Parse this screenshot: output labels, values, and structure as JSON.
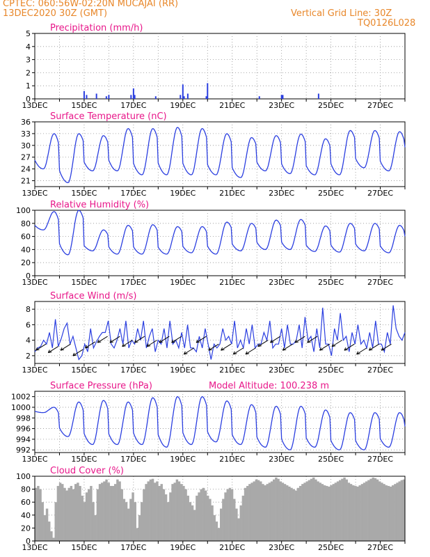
{
  "header": {
    "line1_left": "CPTEC:   060:56W-02:20N   MUCAJAI (RR)",
    "line2_left": "13DEC2020 30Z (GMT)",
    "line1_right": "Vertical Grid Line: 30Z",
    "line2_right": "TQ0126L028"
  },
  "colors": {
    "header": "#e8872a",
    "panel_title": "#e8178a",
    "series": "#2a3ee0",
    "cloud": "#a9a9a9",
    "grid": "#909090"
  },
  "chart_data": [
    {
      "type": "bar",
      "title": "Precipitation (mm/h)",
      "ylim": [
        0,
        5
      ],
      "yticks": [
        "0",
        "1",
        "2",
        "3",
        "4",
        "5"
      ],
      "x_range_days": [
        13,
        28
      ],
      "xtick_labels": [
        "13DEC",
        "15DEC",
        "17DEC",
        "19DEC",
        "21DEC",
        "23DEC",
        "25DEC",
        "27DEC"
      ],
      "grid": "dotted",
      "bars": [
        [
          15.0,
          0.6
        ],
        [
          15.1,
          0.3
        ],
        [
          15.5,
          0.4
        ],
        [
          15.9,
          0.2
        ],
        [
          16.0,
          0.3
        ],
        [
          16.9,
          0.3
        ],
        [
          17.0,
          0.8
        ],
        [
          17.05,
          0.3
        ],
        [
          17.9,
          0.2
        ],
        [
          18.9,
          0.3
        ],
        [
          19.0,
          1.1
        ],
        [
          19.05,
          0.2
        ],
        [
          19.2,
          0.4
        ],
        [
          19.95,
          0.2
        ],
        [
          20.0,
          1.2
        ],
        [
          22.1,
          0.2
        ],
        [
          23.0,
          0.3
        ],
        [
          23.05,
          0.3
        ],
        [
          24.5,
          0.4
        ]
      ]
    },
    {
      "type": "line",
      "title": "Surface Temperature (nC)",
      "ylim": [
        19.5,
        36
      ],
      "yticks": [
        "21",
        "24",
        "27",
        "30",
        "33",
        "36"
      ],
      "xtick_labels": [
        "13DEC",
        "15DEC",
        "17DEC",
        "19DEC",
        "21DEC",
        "23DEC",
        "25DEC",
        "27DEC"
      ],
      "grid": "dotted",
      "peaks": [
        33.0,
        33.0,
        32.5,
        34.3,
        34.3,
        34.6,
        34.3,
        33.0,
        32.0,
        32.5,
        32.9,
        31.7,
        33.8,
        33.8,
        33.5
      ],
      "troughs": [
        24.0,
        20.5,
        23.5,
        23.5,
        22.5,
        22.5,
        22.5,
        22.5,
        21.8,
        23.5,
        22.8,
        22.5,
        22.5,
        24.3,
        23.5
      ]
    },
    {
      "type": "line",
      "title": "Relative Humidity (%)",
      "ylim": [
        0,
        100
      ],
      "yticks": [
        "0",
        "20",
        "40",
        "60",
        "80",
        "100"
      ],
      "xtick_labels": [
        "13DEC",
        "15DEC",
        "17DEC",
        "19DEC",
        "21DEC",
        "23DEC",
        "25DEC",
        "27DEC"
      ],
      "grid": "dotted",
      "peaks": [
        98,
        100,
        70,
        77,
        78,
        75,
        75,
        82,
        80,
        85,
        86,
        76,
        80,
        80,
        77
      ],
      "troughs": [
        70,
        32,
        38,
        33,
        33,
        33,
        35,
        33,
        38,
        40,
        40,
        37,
        36,
        38,
        35
      ]
    },
    {
      "type": "line",
      "title": "Surface Wind (m/s)",
      "ylim": [
        1,
        9
      ],
      "yticks": [
        "2",
        "4",
        "6",
        "8"
      ],
      "xtick_labels": [
        "13DEC",
        "15DEC",
        "17DEC",
        "19DEC",
        "21DEC",
        "23DEC",
        "25DEC",
        "27DEC"
      ],
      "grid": "dotted",
      "values": [
        2.5,
        3.0,
        3.2,
        4.0,
        3.5,
        5.0,
        3.0,
        6.7,
        3.2,
        4.2,
        5.5,
        6.2,
        3.5,
        4.5,
        3.0,
        1.5,
        2.0,
        3.5,
        2.5,
        5.5,
        3.0,
        3.8,
        4.5,
        5.0,
        5.0,
        6.5,
        3.5,
        3.0,
        4.0,
        5.5,
        3.5,
        6.5,
        3.0,
        4.0,
        3.5,
        5.5,
        4.0,
        6.5,
        3.0,
        4.5,
        5.5,
        2.5,
        4.0,
        3.5,
        5.5,
        3.0,
        6.5,
        3.5,
        4.0,
        3.0,
        5.0,
        3.0,
        6.0,
        3.0,
        3.0,
        2.5,
        4.5,
        3.0,
        5.5,
        3.5,
        1.5,
        3.5,
        3.0,
        3.5,
        5.5,
        4.0,
        4.5,
        3.5,
        6.5,
        3.0,
        4.0,
        3.0,
        5.5,
        3.5,
        6.0,
        3.0,
        3.5,
        3.5,
        5.0,
        4.0,
        6.5,
        3.0,
        3.5,
        3.5,
        5.5,
        3.0,
        6.0,
        3.5,
        3.5,
        4.0,
        6.0,
        3.0,
        7.0,
        4.0,
        4.5,
        2.5,
        5.5,
        3.0,
        8.2,
        3.5,
        3.5,
        2.0,
        5.5,
        4.0,
        7.5,
        4.0,
        4.5,
        2.5,
        5.0,
        3.5,
        6.0,
        3.5,
        4.0,
        3.0,
        5.0,
        3.0,
        6.5,
        3.5,
        3.5,
        2.5,
        5.0,
        3.5,
        8.5,
        5.5,
        4.5,
        4.0,
        5.0
      ]
    },
    {
      "type": "line",
      "title": "Surface Pressure (hPa)",
      "subtitle": "Model Altitude: 100.238  m",
      "ylim": [
        991.5,
        1003
      ],
      "yticks": [
        "992",
        "994",
        "996",
        "998",
        "1000",
        "1002"
      ],
      "xtick_labels": [
        "13DEC",
        "15DEC",
        "17DEC",
        "19DEC",
        "21DEC",
        "23DEC",
        "25DEC",
        "27DEC"
      ],
      "grid": "dotted",
      "peaks": [
        1000.0,
        1001.0,
        1001.3,
        1001.0,
        1001.8,
        1002.0,
        1002.0,
        1001.2,
        1000.5,
        1000.2,
        1000.2,
        999.5,
        999.0,
        999.0,
        999.0
      ],
      "troughs": [
        999.0,
        994.5,
        993.0,
        993.0,
        993.0,
        992.5,
        993.0,
        993.5,
        993.0,
        992.5,
        992.0,
        992.5,
        992.0,
        992.0,
        992.5
      ]
    },
    {
      "type": "bar",
      "title": "Cloud Cover (%)",
      "ylim": [
        0,
        100
      ],
      "yticks": [
        "0",
        "20",
        "40",
        "60",
        "80",
        "100"
      ],
      "xtick_labels": [
        "13DEC",
        "15DEC",
        "17DEC",
        "19DEC",
        "21DEC",
        "23DEC",
        "25DEC",
        "27DEC"
      ],
      "grid": "dotted",
      "values": [
        82,
        85,
        80,
        60,
        40,
        50,
        30,
        15,
        5,
        60,
        85,
        90,
        88,
        82,
        78,
        82,
        85,
        80,
        88,
        90,
        85,
        70,
        60,
        75,
        80,
        85,
        60,
        40,
        80,
        88,
        90,
        92,
        95,
        90,
        85,
        85,
        88,
        95,
        92,
        80,
        65,
        60,
        50,
        65,
        75,
        60,
        20,
        40,
        60,
        80,
        88,
        92,
        95,
        96,
        90,
        92,
        85,
        88,
        80,
        72,
        60,
        75,
        88,
        90,
        95,
        92,
        88,
        85,
        80,
        70,
        60,
        55,
        48,
        70,
        75,
        80,
        82,
        78,
        70,
        65,
        55,
        40,
        30,
        20,
        50,
        65,
        75,
        80,
        82,
        80,
        65,
        50,
        35,
        55,
        70,
        82,
        85,
        88,
        90,
        92,
        95,
        94,
        92,
        88,
        86,
        88,
        90,
        92,
        95,
        98,
        96,
        92,
        90,
        88,
        86,
        84,
        82,
        80,
        78,
        82,
        85,
        88,
        90,
        92,
        94,
        96,
        98,
        95,
        92,
        90,
        88,
        86,
        85,
        84,
        86,
        88,
        90,
        92,
        94,
        96,
        98,
        95,
        90,
        88,
        86,
        85,
        84,
        86,
        88,
        90,
        92,
        94,
        96,
        98,
        97,
        95,
        92,
        90,
        88,
        86,
        85,
        84,
        86,
        88,
        90,
        92,
        94,
        95
      ]
    }
  ]
}
